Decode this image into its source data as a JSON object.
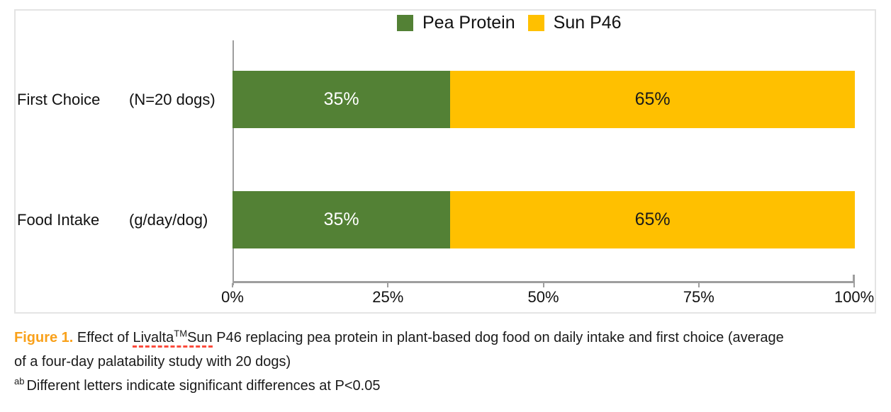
{
  "chart_data": {
    "type": "bar",
    "orientation": "horizontal-stacked",
    "categories": [
      "First Choice (N=20 dogs)",
      "Food Intake (g/day/dog)"
    ],
    "series": [
      {
        "name": "Pea Protein",
        "values": [
          35,
          35
        ],
        "color": "#538135",
        "label_color": "#ffffff"
      },
      {
        "name": "Sun P46",
        "values": [
          65,
          65
        ],
        "color": "#ffc000",
        "label_color": "#1a1a1a"
      }
    ],
    "value_labels": [
      [
        "35%",
        "65%"
      ],
      [
        "35%",
        "65%"
      ]
    ],
    "x_ticks": [
      "0%",
      "25%",
      "50%",
      "75%",
      "100%"
    ],
    "xlim": [
      0,
      100
    ],
    "legend_position": "top",
    "grid": false,
    "title": "",
    "xlabel": "",
    "ylabel": ""
  },
  "chart": {
    "rows": [
      {
        "label": "First Choice",
        "unit": "(N=20 dogs)"
      },
      {
        "label": "Food Intake",
        "unit": "(g/day/dog)"
      }
    ],
    "colors": {
      "axis": "#9e9e9e",
      "box_border": "#e4e4e4"
    }
  },
  "caption": {
    "figure_label": "Figure 1.",
    "figure_label_color": "#f9a11b",
    "text_before_brand": " Effect of ",
    "brand_prefix": "Livalta",
    "brand_tm": "TM",
    "brand_suffix": "Sun",
    "line1_rest": " P46 replacing pea protein in plant-based dog food on daily intake and first choice (average",
    "line2": "of a four-day palatability study with 20 dogs)",
    "footnote_sup": "ab",
    "footnote_text": "Different letters indicate significant differences at P<0.05",
    "misspelling_underline_color": "#fb4b3c"
  }
}
